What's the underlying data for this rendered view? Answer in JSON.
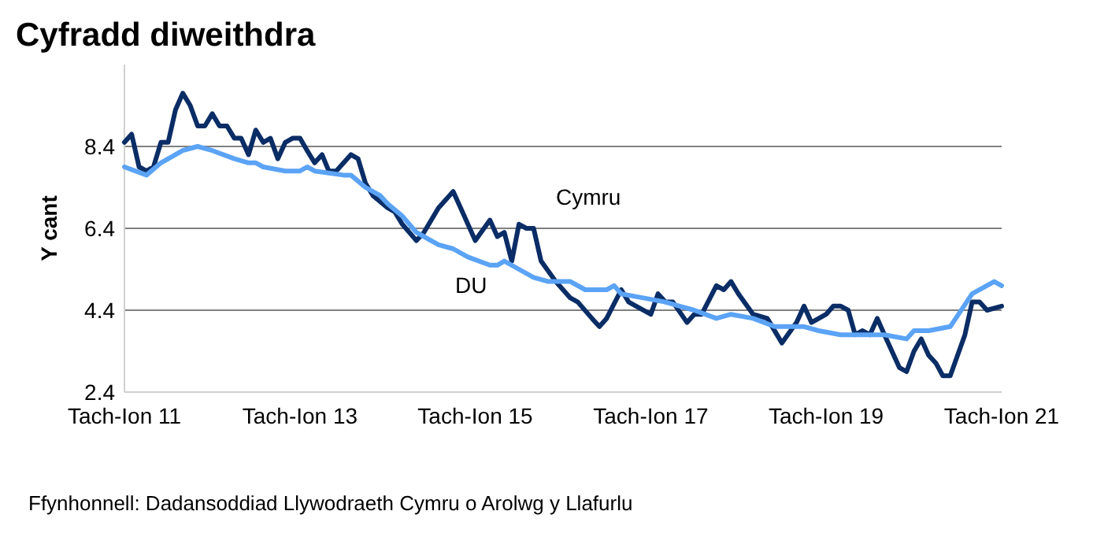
{
  "chart_data": {
    "type": "line",
    "title": "Cyfradd diweithdra",
    "ylabel": "Y cant",
    "annotations": [
      "Ffynhonnell: Dadansoddiad Llywodraeth Cymru o Arolwg y Llafurlu"
    ],
    "xlim": [
      "2011-11",
      "2021-11"
    ],
    "xticks": [
      {
        "value": "2011-11",
        "label": "Tach-Ion 11"
      },
      {
        "value": "2013-11",
        "label": "Tach-Ion 13"
      },
      {
        "value": "2015-11",
        "label": "Tach-Ion 15"
      },
      {
        "value": "2017-11",
        "label": "Tach-Ion 17"
      },
      {
        "value": "2019-11",
        "label": "Tach-Ion 19"
      },
      {
        "value": "2021-11",
        "label": "Tach-Ion 21"
      }
    ],
    "ylim": [
      2.4,
      10.4
    ],
    "yticks": [
      2.4,
      4.4,
      6.4,
      8.4
    ],
    "grid": "y",
    "legend": false,
    "line_style": "solid",
    "marker": "none",
    "series": [
      {
        "name": "Cymru",
        "color": "#0b2d66",
        "x": [
          "2011-11",
          "2011-12",
          "2012-01",
          "2012-02",
          "2012-03",
          "2012-04",
          "2012-05",
          "2012-06",
          "2012-07",
          "2012-08",
          "2012-09",
          "2012-10",
          "2012-11",
          "2012-12",
          "2013-01",
          "2013-02",
          "2013-03",
          "2013-04",
          "2013-05",
          "2013-06",
          "2013-07",
          "2013-08",
          "2013-09",
          "2013-10",
          "2013-11",
          "2013-12",
          "2014-01",
          "2014-02",
          "2014-03",
          "2014-04",
          "2014-06",
          "2014-07",
          "2014-08",
          "2014-09",
          "2014-11",
          "2014-12",
          "2015-01",
          "2015-03",
          "2015-04",
          "2015-06",
          "2015-08",
          "2015-09",
          "2015-11",
          "2016-01",
          "2016-02",
          "2016-03",
          "2016-04",
          "2016-05",
          "2016-06",
          "2016-07",
          "2016-08",
          "2016-10",
          "2016-12",
          "2017-01",
          "2017-03",
          "2017-04",
          "2017-05",
          "2017-07",
          "2017-08",
          "2017-09",
          "2017-11",
          "2017-12",
          "2018-01",
          "2018-02",
          "2018-04",
          "2018-05",
          "2018-06",
          "2018-08",
          "2018-09",
          "2018-10",
          "2018-11",
          "2019-01",
          "2019-03",
          "2019-05",
          "2019-07",
          "2019-08",
          "2019-09",
          "2019-11",
          "2019-12",
          "2020-01",
          "2020-02",
          "2020-03",
          "2020-04",
          "2020-05",
          "2020-06",
          "2020-07",
          "2020-09",
          "2020-10",
          "2020-11",
          "2020-12",
          "2021-01",
          "2021-02",
          "2021-03",
          "2021-04",
          "2021-06",
          "2021-07",
          "2021-08",
          "2021-09",
          "2021-11"
        ],
        "values": [
          8.5,
          8.7,
          7.9,
          7.8,
          7.9,
          8.5,
          8.5,
          9.3,
          9.7,
          9.4,
          8.9,
          8.9,
          9.2,
          8.9,
          8.9,
          8.6,
          8.6,
          8.2,
          8.8,
          8.5,
          8.6,
          8.1,
          8.5,
          8.6,
          8.6,
          8.3,
          8.0,
          8.2,
          7.8,
          7.8,
          8.2,
          8.1,
          7.5,
          7.2,
          6.9,
          6.8,
          6.5,
          6.1,
          6.3,
          6.9,
          7.3,
          6.9,
          6.1,
          6.6,
          6.2,
          6.3,
          5.6,
          6.5,
          6.4,
          6.4,
          5.6,
          5.1,
          4.7,
          4.6,
          4.2,
          4.0,
          4.2,
          4.9,
          4.6,
          4.5,
          4.3,
          4.8,
          4.6,
          4.6,
          4.1,
          4.3,
          4.3,
          5.0,
          4.9,
          5.1,
          4.8,
          4.3,
          4.2,
          3.6,
          4.1,
          4.5,
          4.1,
          4.3,
          4.5,
          4.5,
          4.4,
          3.8,
          3.9,
          3.8,
          4.2,
          3.8,
          3.0,
          2.9,
          3.4,
          3.7,
          3.3,
          3.1,
          2.8,
          2.8,
          3.8,
          4.6,
          4.6,
          4.4,
          4.5
        ]
      },
      {
        "name": "DU",
        "color": "#5ba3f5",
        "x": [
          "2011-11",
          "2012-02",
          "2012-04",
          "2012-07",
          "2012-09",
          "2012-11",
          "2013-02",
          "2013-04",
          "2013-05",
          "2013-06",
          "2013-09",
          "2013-11",
          "2013-12",
          "2014-01",
          "2014-05",
          "2014-06",
          "2014-08",
          "2014-10",
          "2014-11",
          "2015-01",
          "2015-03",
          "2015-05",
          "2015-06",
          "2015-08",
          "2015-10",
          "2016-01",
          "2016-02",
          "2016-03",
          "2016-05",
          "2016-07",
          "2016-09",
          "2016-12",
          "2017-02",
          "2017-05",
          "2017-06",
          "2017-07",
          "2017-10",
          "2018-01",
          "2018-03",
          "2018-05",
          "2018-08",
          "2018-10",
          "2019-01",
          "2019-04",
          "2019-08",
          "2019-10",
          "2020-01",
          "2020-04",
          "2020-07",
          "2020-10",
          "2020-11",
          "2021-01",
          "2021-04",
          "2021-07",
          "2021-10",
          "2021-11"
        ],
        "values": [
          7.9,
          7.7,
          8.0,
          8.3,
          8.4,
          8.3,
          8.1,
          8.0,
          8.0,
          7.9,
          7.8,
          7.8,
          7.9,
          7.8,
          7.7,
          7.7,
          7.4,
          7.2,
          7.0,
          6.7,
          6.3,
          6.1,
          6.0,
          5.9,
          5.7,
          5.5,
          5.5,
          5.6,
          5.4,
          5.2,
          5.1,
          5.1,
          4.9,
          4.9,
          5.0,
          4.8,
          4.7,
          4.6,
          4.5,
          4.4,
          4.2,
          4.3,
          4.2,
          4.0,
          4.0,
          3.9,
          3.8,
          3.8,
          3.8,
          3.7,
          3.9,
          3.9,
          4.0,
          4.8,
          5.1,
          5.0
        ]
      }
    ]
  }
}
